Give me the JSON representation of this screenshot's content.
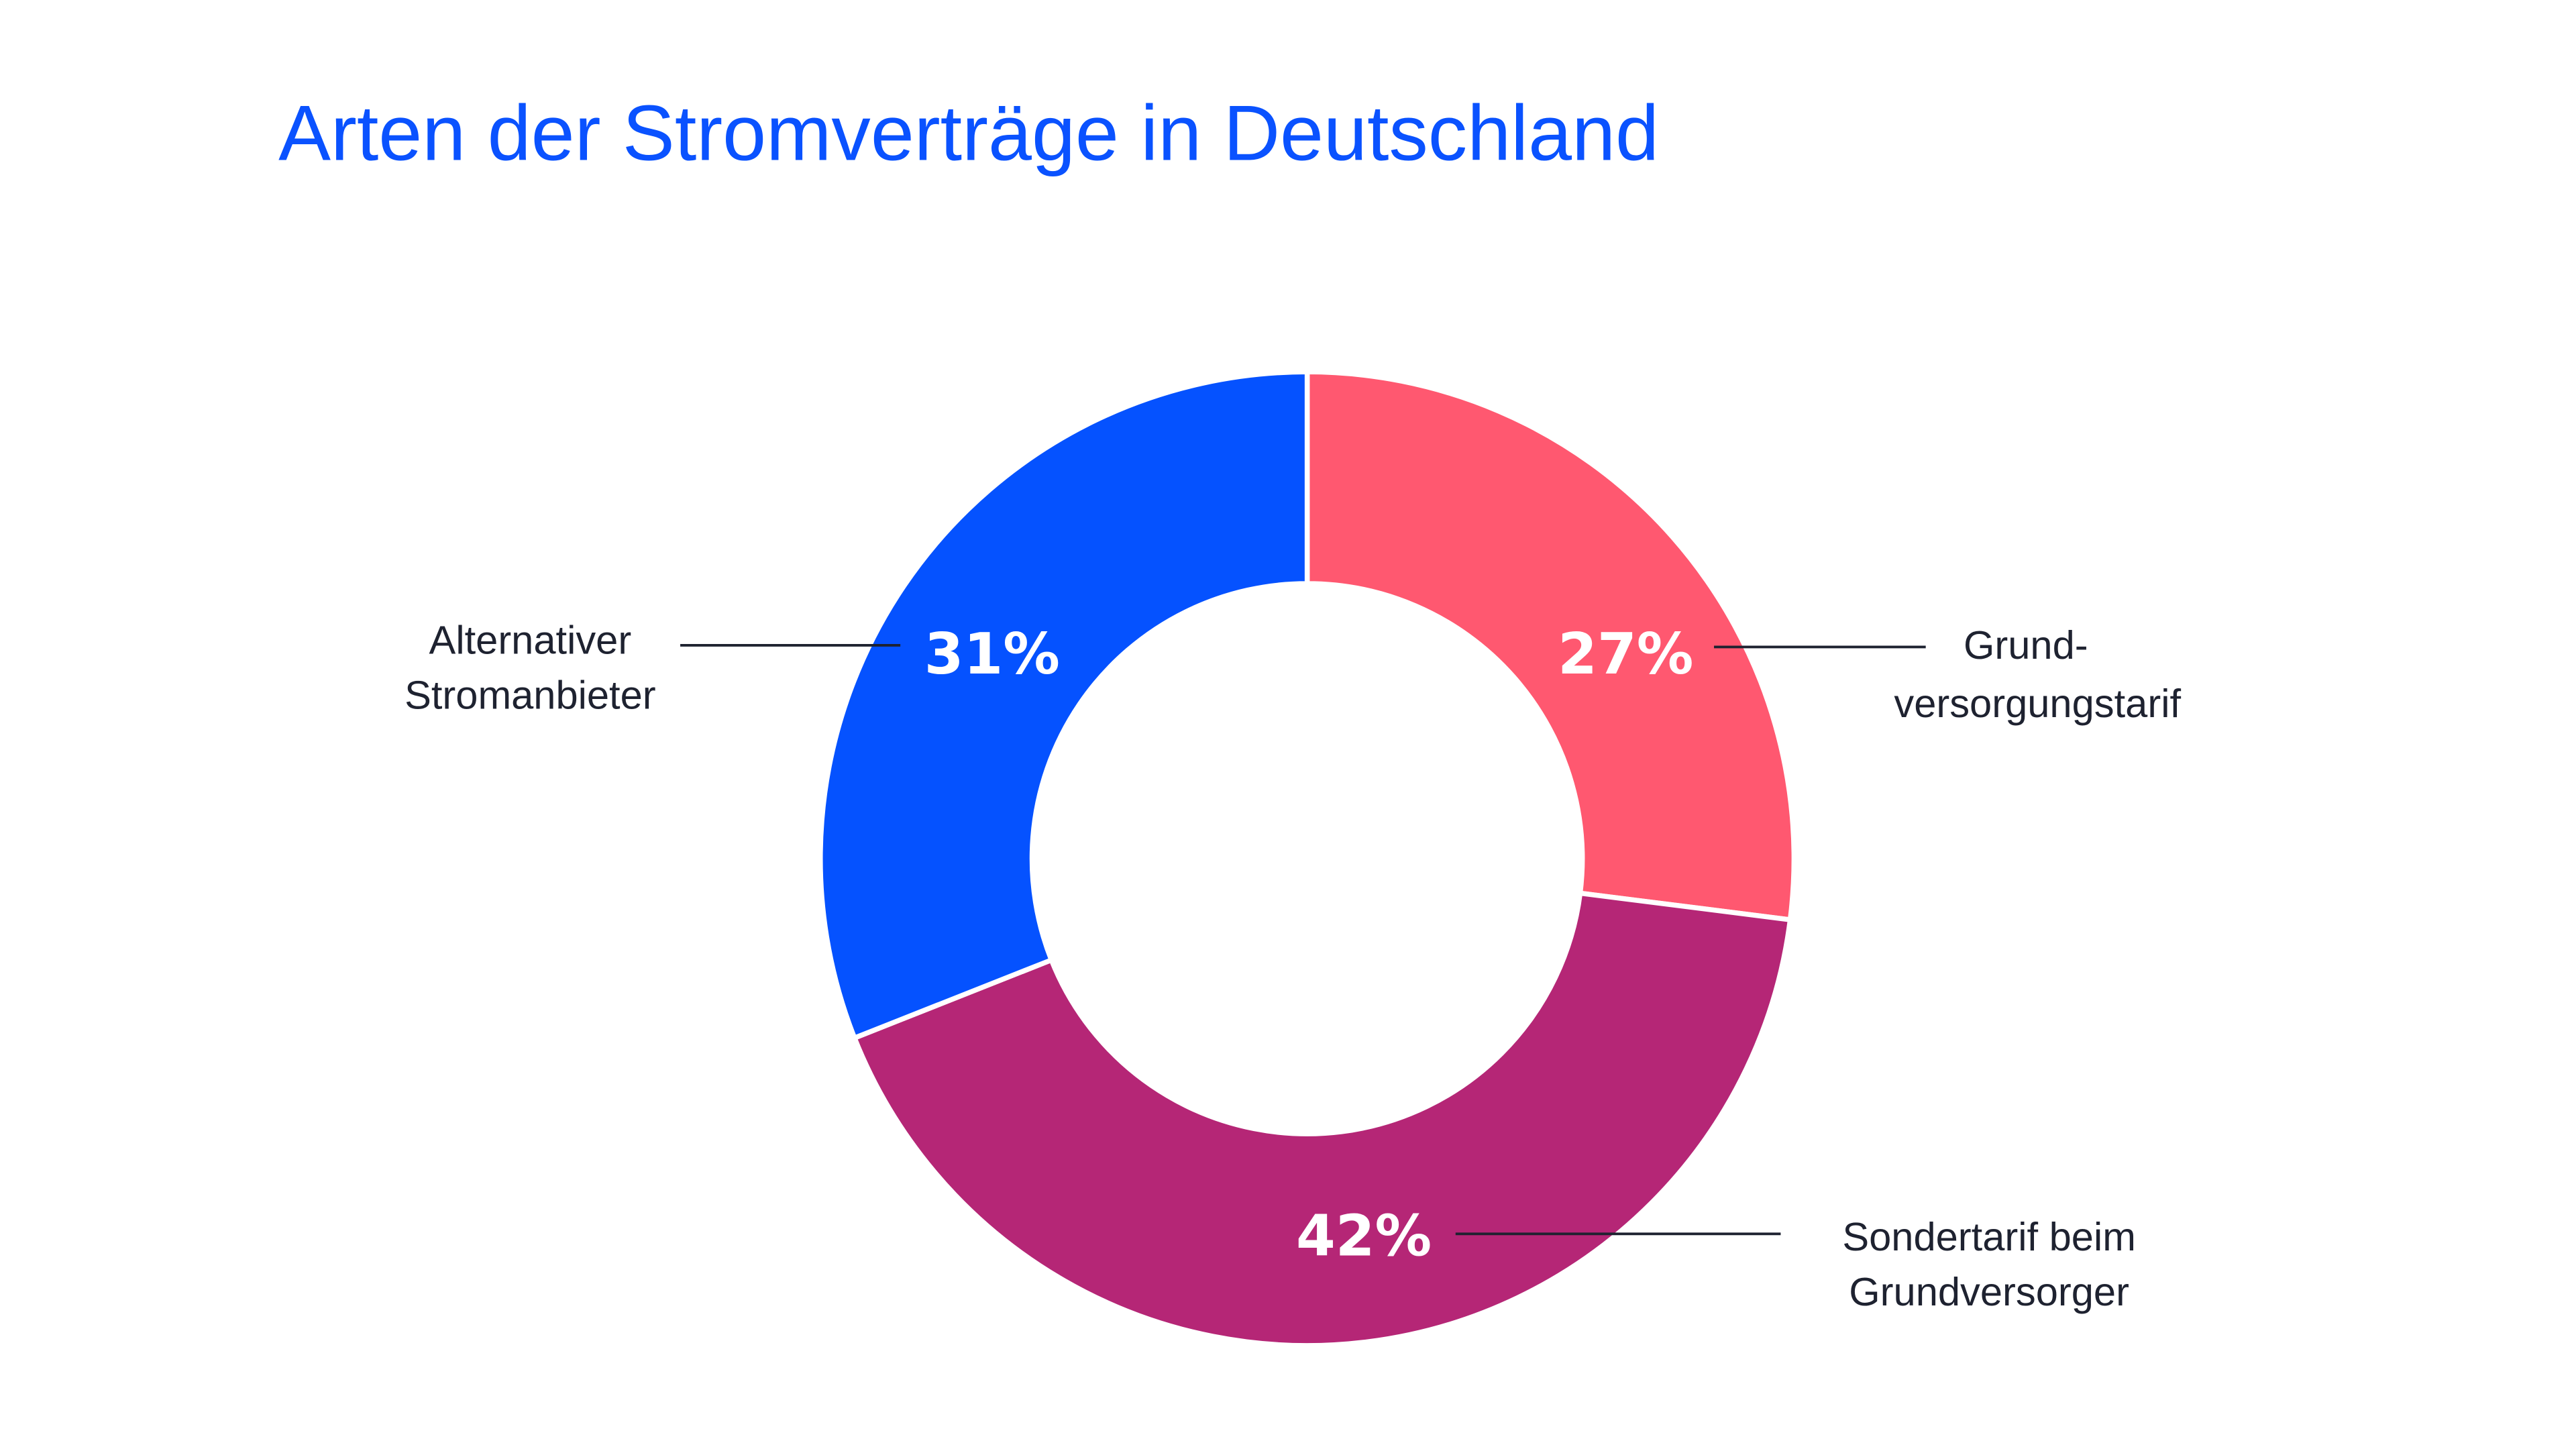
{
  "chart_data": {
    "type": "pie",
    "variant": "donut",
    "title": "Arten der Stromverträge in Deutschland",
    "unit": "%",
    "legend": "none",
    "slices": [
      {
        "label": "Grund-versorgungstarif",
        "label_lines": [
          "Grund-",
          "versorgungstarif"
        ],
        "value": 27,
        "value_label": "27%",
        "color": "#ff5870"
      },
      {
        "label": "Sondertarif beim Grundversorger",
        "label_lines": [
          "Sondertarif beim",
          "Grundversorger"
        ],
        "value": 42,
        "value_label": "42%",
        "color": "#b52676"
      },
      {
        "label": "Alternativer Stromanbieter",
        "label_lines": [
          "Alternativer",
          "Stromanbieter"
        ],
        "value": 31,
        "value_label": "31%",
        "color": "#0552ff"
      }
    ],
    "start_angle": "top, clockwise"
  }
}
